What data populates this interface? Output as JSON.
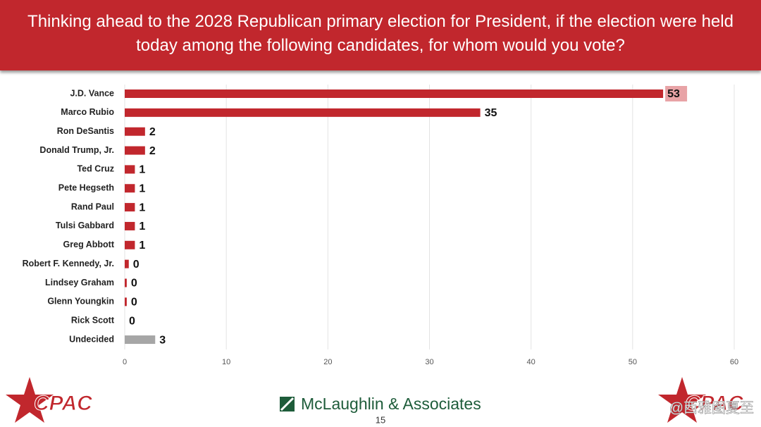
{
  "chart_data": {
    "type": "bar",
    "orientation": "horizontal",
    "title": "Thinking ahead to the 2028 Republican primary election for President, if the election were held today among the following candidates, for whom would you vote?",
    "categories": [
      "J.D. Vance",
      "Marco Rubio",
      "Ron DeSantis",
      "Donald Trump, Jr.",
      "Ted Cruz",
      "Pete Hegseth",
      "Rand Paul",
      "Tulsi Gabbard",
      "Greg Abbott",
      "Robert F. Kennedy, Jr.",
      "Lindsey Graham",
      "Glenn Youngkin",
      "Rick Scott",
      "Undecided"
    ],
    "values": [
      53,
      35,
      2,
      2,
      1,
      1,
      1,
      1,
      1,
      0.4,
      0.2,
      0.2,
      0,
      3
    ],
    "value_labels": [
      "53",
      "35",
      "2",
      "2",
      "1",
      "1",
      "1",
      "1",
      "1",
      "0",
      "0",
      "0",
      "0",
      "3"
    ],
    "colors": [
      "#c1272d",
      "#c1272d",
      "#c1272d",
      "#c1272d",
      "#c1272d",
      "#c1272d",
      "#c1272d",
      "#c1272d",
      "#c1272d",
      "#c1272d",
      "#c1272d",
      "#c1272d",
      "#c1272d",
      "#a6a6a6"
    ],
    "xlim": [
      0,
      60
    ],
    "xticks": [
      0,
      10,
      20,
      30,
      40,
      50,
      60
    ],
    "grid": true
  },
  "footer": {
    "logo_left": "CPAC",
    "logo_right": "CPAC",
    "pollster": "McLaughlin & Associates",
    "page": "15",
    "watermark": "@西雅图夏至"
  }
}
